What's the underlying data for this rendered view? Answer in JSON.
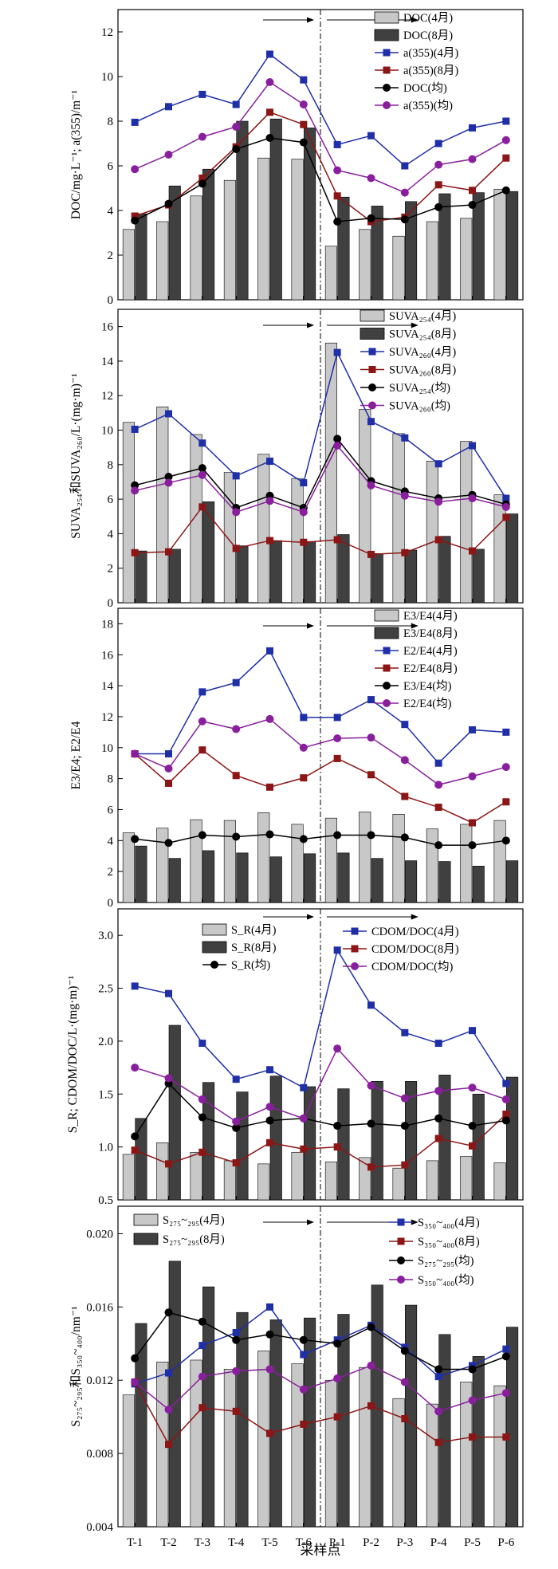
{
  "x_axis": {
    "categories": [
      "T-1",
      "T-2",
      "T-3",
      "T-4",
      "T-5",
      "T-6",
      "P-1",
      "P-2",
      "P-3",
      "P-4",
      "P-5",
      "P-6"
    ],
    "label": "采样点"
  },
  "chart_data": [
    {
      "type": "bar",
      "ylabel": "DOC/mg·L⁻¹; a(355)/m⁻¹",
      "ylim": [
        0,
        13
      ],
      "yticks": [
        "0",
        "2",
        "4",
        "6",
        "8",
        "10",
        "12"
      ],
      "ytick_values": [
        0,
        2,
        4,
        6,
        8,
        10,
        12
      ],
      "bars": [
        {
          "name": "DOC(4月)",
          "color": "#c8c8c8",
          "values": [
            3.15,
            3.5,
            4.65,
            5.35,
            6.35,
            6.3,
            2.4,
            3.15,
            2.85,
            3.5,
            3.65,
            4.95
          ]
        },
        {
          "name": "DOC(8月)",
          "color": "#404040",
          "values": [
            3.85,
            5.1,
            5.85,
            8.0,
            8.1,
            7.7,
            4.6,
            4.2,
            4.4,
            4.75,
            4.8,
            4.85
          ]
        }
      ],
      "lines": [
        {
          "name": "a(355)(4月)",
          "color": "#1f2fa8",
          "marker": "square",
          "values": [
            7.95,
            8.65,
            9.2,
            8.75,
            11.0,
            9.85,
            6.95,
            7.35,
            6.0,
            7.0,
            7.7,
            8.0
          ]
        },
        {
          "name": "a(355)(8月)",
          "color": "#8c1515",
          "marker": "square",
          "values": [
            3.75,
            4.25,
            5.45,
            6.85,
            8.4,
            7.85,
            4.65,
            3.5,
            3.7,
            5.15,
            4.9,
            6.35
          ]
        },
        {
          "name": "DOC(均)",
          "color": "#000000",
          "marker": "circle",
          "values": [
            3.55,
            4.3,
            5.2,
            6.75,
            7.25,
            7.05,
            3.5,
            3.65,
            3.6,
            4.15,
            4.25,
            4.9
          ]
        },
        {
          "name": "a(355)(均)",
          "color": "#8a1f9e",
          "marker": "circle",
          "values": [
            5.85,
            6.5,
            7.3,
            7.75,
            9.75,
            8.75,
            5.8,
            5.45,
            4.8,
            6.05,
            6.3,
            7.15
          ]
        }
      ],
      "legend": {
        "bars": [
          "DOC(4月)",
          "DOC(8月)"
        ],
        "lines": [
          "a(355)(4月)",
          "a(355)(8月)",
          "DOC(均)",
          "a(355)(均)"
        ]
      }
    },
    {
      "type": "bar",
      "ylabel": "SUVA₂₅₄和SUVA₂₆₀/L·(mg·m)⁻¹",
      "ylim": [
        0,
        17
      ],
      "yticks": [
        "0",
        "2",
        "4",
        "6",
        "8",
        "10",
        "12",
        "14",
        "16"
      ],
      "ytick_values": [
        0,
        2,
        4,
        6,
        8,
        10,
        12,
        14,
        16
      ],
      "bars": [
        {
          "name": "SUVA₂₅₄(4月)",
          "color": "#c8c8c8",
          "values": [
            10.45,
            11.35,
            9.75,
            7.55,
            8.6,
            7.2,
            15.05,
            11.2,
            9.8,
            8.2,
            9.35,
            6.25
          ]
        },
        {
          "name": "SUVA₂₅₄(8月)",
          "color": "#404040",
          "values": [
            3.0,
            3.1,
            5.85,
            3.3,
            3.6,
            3.55,
            3.95,
            2.85,
            3.05,
            3.85,
            3.1,
            5.15
          ]
        }
      ],
      "lines": [
        {
          "name": "SUVA₂₆₀(4月)",
          "color": "#1f2fa8",
          "marker": "square",
          "values": [
            10.05,
            10.95,
            9.25,
            7.35,
            8.2,
            6.95,
            14.5,
            10.5,
            9.55,
            8.05,
            9.1,
            6.05
          ]
        },
        {
          "name": "SUVA₂₆₀(8月)",
          "color": "#8c1515",
          "marker": "square",
          "values": [
            2.9,
            2.95,
            5.55,
            3.15,
            3.6,
            3.5,
            3.65,
            2.8,
            2.9,
            3.65,
            3.0,
            4.95
          ]
        },
        {
          "name": "SUVA₂₅₄(均)",
          "color": "#000000",
          "marker": "circle",
          "values": [
            6.8,
            7.3,
            7.8,
            5.5,
            6.2,
            5.5,
            9.5,
            7.05,
            6.45,
            6.05,
            6.25,
            5.7
          ]
        },
        {
          "name": "SUVA₂₆₀(均)",
          "color": "#8a1f9e",
          "marker": "circle",
          "values": [
            6.5,
            6.95,
            7.4,
            5.25,
            5.9,
            5.25,
            9.1,
            6.8,
            6.2,
            5.85,
            6.05,
            5.55
          ]
        }
      ],
      "legend": {
        "bars": [
          "SUVA₂₅₄(4月)",
          "SUVA₂₅₄(8月)"
        ],
        "lines": [
          "SUVA₂₆₀(4月)",
          "SUVA₂₆₀(8月)",
          "SUVA₂₅₄(均)",
          "SUVA₂₆₀(均)"
        ]
      }
    },
    {
      "type": "bar",
      "ylabel": "E3/E4; E2/E4",
      "ylim": [
        0,
        19
      ],
      "yticks": [
        "0",
        "2",
        "4",
        "6",
        "8",
        "10",
        "12",
        "14",
        "16",
        "18"
      ],
      "ytick_values": [
        0,
        2,
        4,
        6,
        8,
        10,
        12,
        14,
        16,
        18
      ],
      "bars": [
        {
          "name": "E3/E4(4月)",
          "color": "#c8c8c8",
          "values": [
            4.5,
            4.8,
            5.35,
            5.3,
            5.8,
            5.05,
            5.45,
            5.85,
            5.7,
            4.75,
            5.05,
            5.3
          ]
        },
        {
          "name": "E3/E4(8月)",
          "color": "#404040",
          "values": [
            3.65,
            2.85,
            3.35,
            3.2,
            2.95,
            3.15,
            3.2,
            2.85,
            2.7,
            2.65,
            2.35,
            2.7
          ]
        }
      ],
      "lines": [
        {
          "name": "E2/E4(4月)",
          "color": "#1f2fa8",
          "marker": "square",
          "values": [
            9.6,
            9.6,
            13.6,
            14.2,
            16.25,
            11.95,
            11.95,
            13.1,
            11.5,
            9.0,
            11.15,
            11.0
          ]
        },
        {
          "name": "E2/E4(8月)",
          "color": "#8c1515",
          "marker": "square",
          "values": [
            9.6,
            7.7,
            9.85,
            8.2,
            7.45,
            8.05,
            9.3,
            8.25,
            6.85,
            6.15,
            5.15,
            6.5
          ]
        },
        {
          "name": "E3/E4(均)",
          "color": "#000000",
          "marker": "circle",
          "values": [
            4.1,
            3.85,
            4.35,
            4.25,
            4.4,
            4.1,
            4.35,
            4.35,
            4.2,
            3.7,
            3.7,
            4.0
          ]
        },
        {
          "name": "E2/E4(均)",
          "color": "#8a1f9e",
          "marker": "circle",
          "values": [
            9.6,
            8.65,
            11.7,
            11.2,
            11.85,
            10.0,
            10.6,
            10.65,
            9.2,
            7.6,
            8.15,
            8.75
          ]
        }
      ],
      "legend": {
        "bars": [
          "E3/E4(4月)",
          "E3/E4(8月)"
        ],
        "lines": [
          "E2/E4(4月)",
          "E2/E4(8月)",
          "E3/E4(均)",
          "E2/E4(均)"
        ]
      }
    },
    {
      "type": "bar",
      "ylabel": "S_R; CDOM/DOC/L·(mg·m)⁻¹",
      "ylim": [
        0.5,
        3.25
      ],
      "yticks": [
        "0.5",
        "1.0",
        "1.5",
        "2.0",
        "2.5",
        "3.0"
      ],
      "ytick_values": [
        0.5,
        1.0,
        1.5,
        2.0,
        2.5,
        3.0
      ],
      "bars": [
        {
          "name": "S_R(4月)",
          "color": "#c8c8c8",
          "values": [
            0.93,
            1.04,
            0.95,
            0.87,
            0.84,
            0.95,
            0.86,
            0.9,
            0.8,
            0.87,
            0.91,
            0.85
          ]
        },
        {
          "name": "S_R(8月)",
          "color": "#404040",
          "values": [
            1.27,
            2.15,
            1.61,
            1.52,
            1.67,
            1.57,
            1.55,
            1.62,
            1.62,
            1.68,
            1.5,
            1.66
          ]
        }
      ],
      "lines": [
        {
          "name": "CDOM/DOC(4月)",
          "color": "#1f2fa8",
          "marker": "square",
          "values": [
            2.52,
            2.45,
            1.98,
            1.64,
            1.73,
            1.56,
            2.86,
            2.34,
            2.08,
            1.98,
            2.1,
            1.6
          ]
        },
        {
          "name": "CDOM/DOC(8月)",
          "color": "#8c1515",
          "marker": "square",
          "values": [
            0.97,
            0.84,
            0.95,
            0.85,
            1.04,
            0.98,
            1.0,
            0.81,
            0.83,
            1.08,
            1.01,
            1.31
          ]
        },
        {
          "name": "S_R(均)",
          "color": "#000000",
          "marker": "circle",
          "values": [
            1.1,
            1.6,
            1.28,
            1.18,
            1.25,
            1.27,
            1.2,
            1.22,
            1.2,
            1.27,
            1.2,
            1.25
          ]
        },
        {
          "name": "CDOM/DOC(均)",
          "color": "#8a1f9e",
          "marker": "circle",
          "values": [
            1.75,
            1.65,
            1.45,
            1.24,
            1.38,
            1.27,
            1.93,
            1.58,
            1.46,
            1.53,
            1.56,
            1.45
          ]
        }
      ],
      "legend": {
        "bars": [
          "S_R(4月)",
          "S_R(8月)",
          "S_R(均)"
        ],
        "lines": [
          "CDOM/DOC(4月)",
          "CDOM/DOC(8月)",
          "CDOM/DOC(均)"
        ]
      }
    },
    {
      "type": "bar",
      "ylabel": "S₂₇₅~₂₉₅和S₃₅₀~₄₀₀/nm⁻¹",
      "ylim": [
        0.004,
        0.0215
      ],
      "yticks": [
        "0.004",
        "0.008",
        "0.012",
        "0.016",
        "0.020"
      ],
      "ytick_values": [
        0.004,
        0.008,
        0.012,
        0.016,
        0.02
      ],
      "bars": [
        {
          "name": "S₂₇₅~₂₉₅(4月)",
          "color": "#c8c8c8",
          "values": [
            0.0112,
            0.013,
            0.0131,
            0.0126,
            0.0136,
            0.0129,
            0.012,
            0.0127,
            0.011,
            0.0107,
            0.0119,
            0.0117
          ]
        },
        {
          "name": "S₂₇₅~₂₉₅(8月)",
          "color": "#404040",
          "values": [
            0.0151,
            0.0185,
            0.0171,
            0.0157,
            0.0153,
            0.0154,
            0.0156,
            0.0172,
            0.0161,
            0.0145,
            0.0133,
            0.0149
          ]
        }
      ],
      "lines": [
        {
          "name": "S₃₅₀~₄₀₀(4月)",
          "color": "#1f2fa8",
          "marker": "square",
          "values": [
            0.0118,
            0.0124,
            0.0139,
            0.0146,
            0.016,
            0.0134,
            0.0142,
            0.015,
            0.0138,
            0.0122,
            0.0128,
            0.0137
          ]
        },
        {
          "name": "S₃₅₀~₄₀₀(8月)",
          "color": "#8c1515",
          "marker": "square",
          "values": [
            0.0119,
            0.0085,
            0.0105,
            0.0103,
            0.0091,
            0.0096,
            0.01,
            0.0106,
            0.0099,
            0.0086,
            0.0089,
            0.0089
          ]
        },
        {
          "name": "S₂₇₅~₂₉₅(均)",
          "color": "#000000",
          "marker": "circle",
          "values": [
            0.0132,
            0.0157,
            0.0152,
            0.0142,
            0.0145,
            0.0142,
            0.014,
            0.0149,
            0.0136,
            0.0126,
            0.0126,
            0.0133
          ]
        },
        {
          "name": "S₃₅₀~₄₀₀(均)",
          "color": "#8a1f9e",
          "marker": "circle",
          "values": [
            0.0119,
            0.0104,
            0.0122,
            0.0125,
            0.0126,
            0.0115,
            0.0121,
            0.0128,
            0.0119,
            0.0103,
            0.0109,
            0.0113
          ]
        }
      ],
      "legend": {
        "bars": [
          "S₂₇₅~₂₉₅(4月)",
          "S₂₇₅~₂₉₅(8月)"
        ],
        "lines": [
          "S₃₅₀~₄₀₀(4月)",
          "S₃₅₀~₄₀₀(8月)",
          "S₂₇₅~₂₉₅(均)",
          "S₃₅₀~₄₀₀(均)"
        ]
      }
    }
  ]
}
